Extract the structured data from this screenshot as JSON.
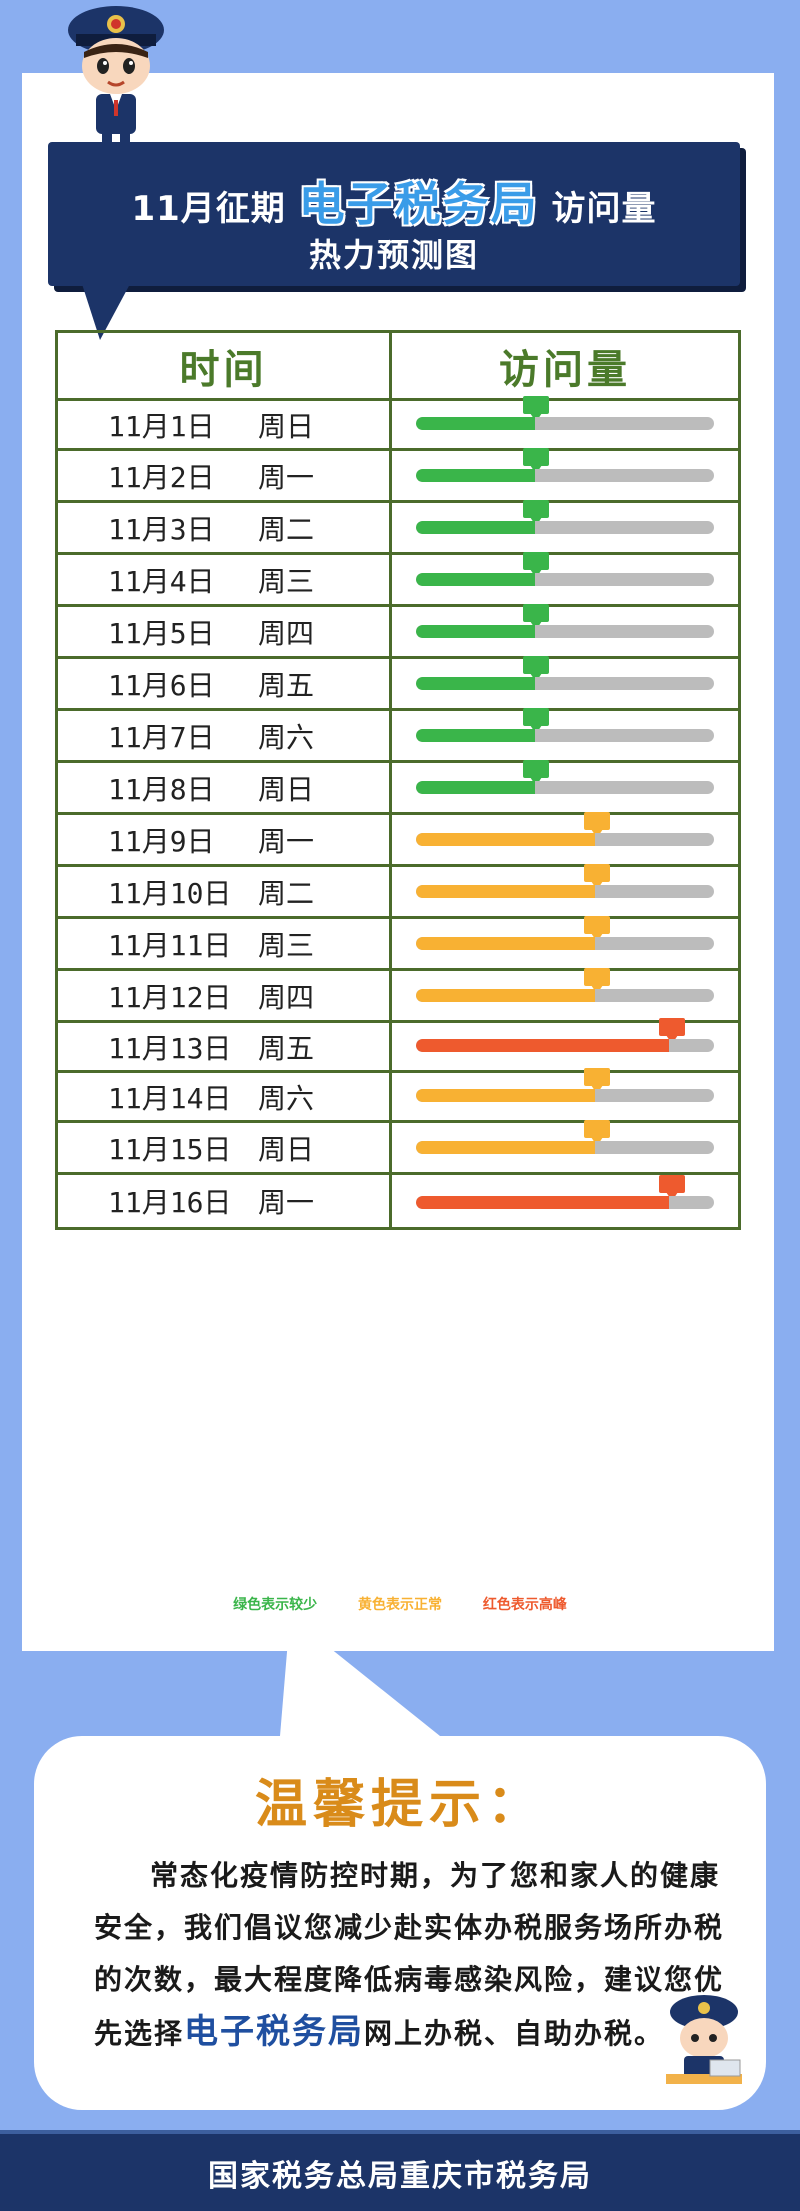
{
  "banner": {
    "title_prefix": "11月征期",
    "title_highlight": "电子税务局",
    "title_suffix": "访问量",
    "subtitle": "热力预测图"
  },
  "table": {
    "header_time": "时间",
    "header_visits": "访问量",
    "rows": [
      {
        "date": "11月1日",
        "day": "周日",
        "level": "low",
        "value": 0.4
      },
      {
        "date": "11月2日",
        "day": "周一",
        "level": "low",
        "value": 0.4
      },
      {
        "date": "11月3日",
        "day": "周二",
        "level": "low",
        "value": 0.4
      },
      {
        "date": "11月4日",
        "day": "周三",
        "level": "low",
        "value": 0.4
      },
      {
        "date": "11月5日",
        "day": "周四",
        "level": "low",
        "value": 0.4
      },
      {
        "date": "11月6日",
        "day": "周五",
        "level": "low",
        "value": 0.4
      },
      {
        "date": "11月7日",
        "day": "周六",
        "level": "low",
        "value": 0.4
      },
      {
        "date": "11月8日",
        "day": "周日",
        "level": "low",
        "value": 0.4
      },
      {
        "date": "11月9日",
        "day": "周一",
        "level": "normal",
        "value": 0.6
      },
      {
        "date": "11月10日",
        "day": "周二",
        "level": "normal",
        "value": 0.6
      },
      {
        "date": "11月11日",
        "day": "周三",
        "level": "normal",
        "value": 0.6
      },
      {
        "date": "11月12日",
        "day": "周四",
        "level": "normal",
        "value": 0.6
      },
      {
        "date": "11月13日",
        "day": "周五",
        "level": "high",
        "value": 0.85
      },
      {
        "date": "11月14日",
        "day": "周六",
        "level": "normal",
        "value": 0.6
      },
      {
        "date": "11月15日",
        "day": "周日",
        "level": "normal",
        "value": 0.6
      },
      {
        "date": "11月16日",
        "day": "周一",
        "level": "high",
        "value": 0.85
      }
    ]
  },
  "legend": {
    "green": "绿色表示较少",
    "yellow": "黄色表示正常",
    "red": "红色表示高峰"
  },
  "colors": {
    "low": "#3ab54a",
    "normal": "#f8b133",
    "high": "#ee5a2e",
    "track": "#bcbcbc",
    "navy": "#1c3468"
  },
  "tip": {
    "title": "温馨提示：",
    "body_before": "常态化疫情防控时期，为了您和家人的健康安全，我们倡议您减少赴实体办税服务场所办税的次数，最大程度降低病毒感染风险，建议您优先选择",
    "body_highlight": "电子税务局",
    "body_after": "网上办税、自助办税。"
  },
  "footer": {
    "text": "国家税务总局重庆市税务局"
  }
}
